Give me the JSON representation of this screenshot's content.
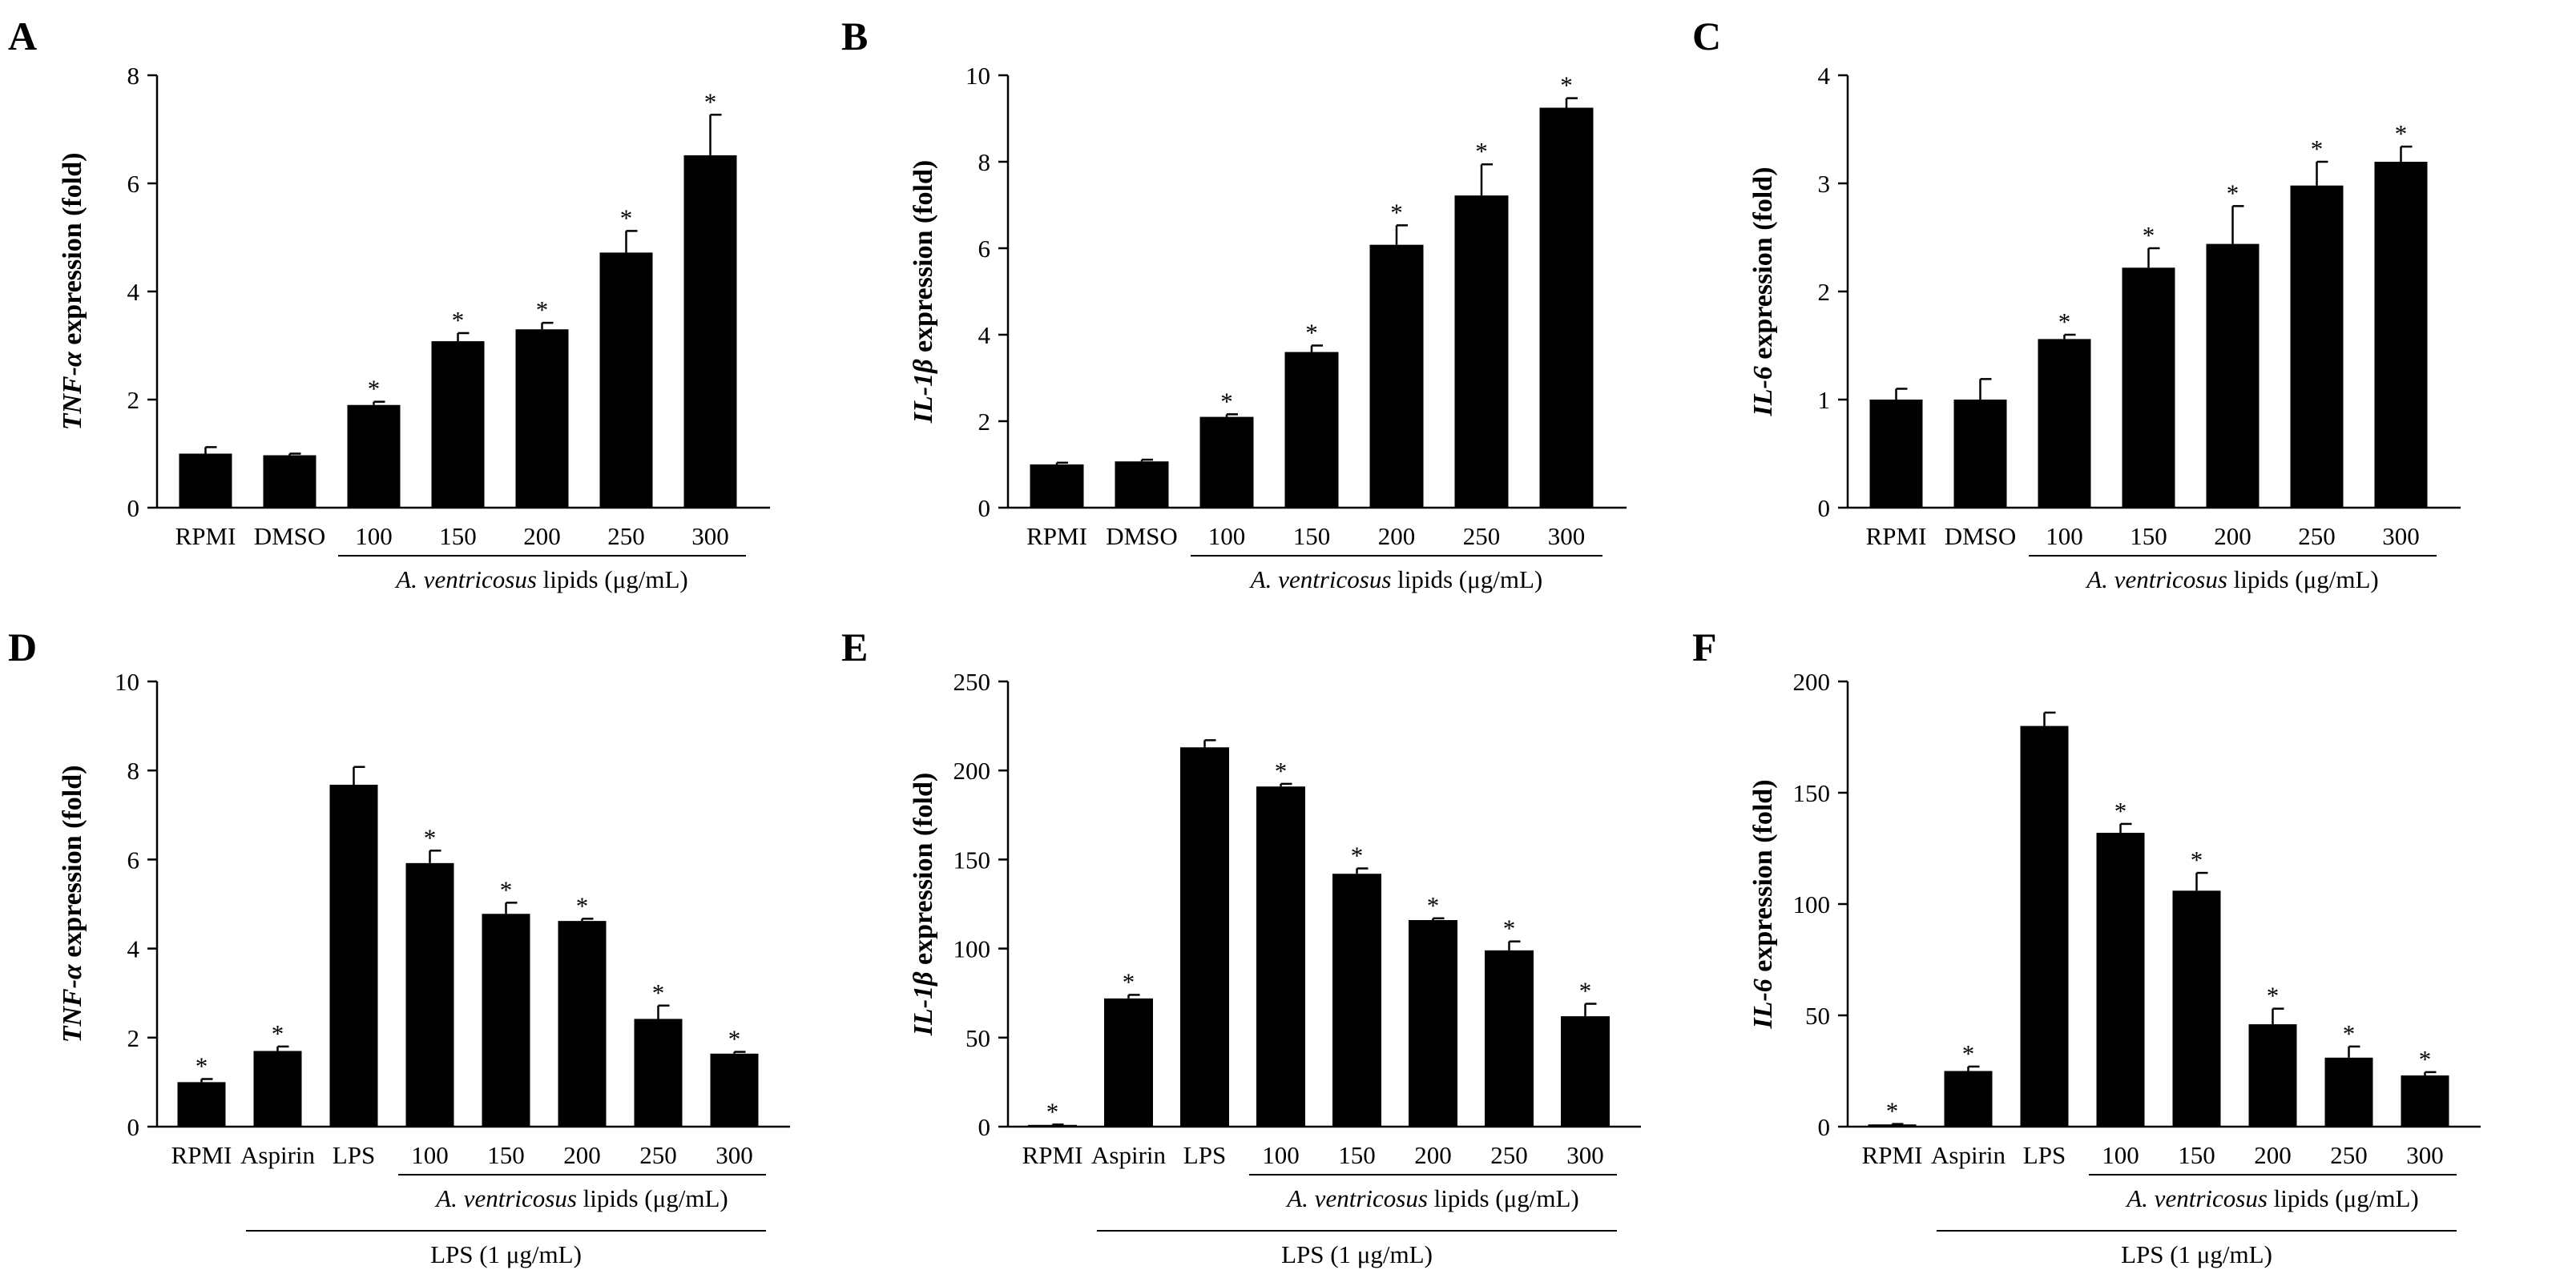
{
  "chart_data": [
    {
      "type": "bar",
      "panel": "A",
      "ylabel_italic": "TNF-α",
      "ylabel_rest": " expression (fold)",
      "ylim": [
        0,
        8
      ],
      "yticks": [
        0,
        2,
        4,
        6,
        8
      ],
      "categories": [
        "RPMI",
        "DMSO",
        "100",
        "150",
        "200",
        "250",
        "300"
      ],
      "values": [
        1.0,
        0.97,
        1.9,
        3.08,
        3.3,
        4.72,
        6.52
      ],
      "errors": [
        0.12,
        0.03,
        0.06,
        0.15,
        0.12,
        0.4,
        0.75
      ],
      "significant": [
        false,
        false,
        true,
        true,
        true,
        true,
        true
      ],
      "star_symbol": "*",
      "groups": [
        {
          "italic": "A. ventricosus",
          "rest": " lipids (μg/mL)",
          "from": 2,
          "to": 6
        }
      ]
    },
    {
      "type": "bar",
      "panel": "B",
      "ylabel_italic": "IL-1β",
      "ylabel_rest": " expression (fold)",
      "ylim": [
        0,
        10
      ],
      "yticks": [
        0,
        2,
        4,
        6,
        8,
        10
      ],
      "categories": [
        "RPMI",
        "DMSO",
        "100",
        "150",
        "200",
        "250",
        "300"
      ],
      "values": [
        1.0,
        1.07,
        2.1,
        3.6,
        6.08,
        7.22,
        9.25
      ],
      "errors": [
        0.04,
        0.04,
        0.06,
        0.15,
        0.45,
        0.72,
        0.22
      ],
      "significant": [
        false,
        false,
        true,
        true,
        true,
        true,
        true
      ],
      "star_symbol": "*",
      "groups": [
        {
          "italic": "A. ventricosus",
          "rest": " lipids (μg/mL)",
          "from": 2,
          "to": 6
        }
      ]
    },
    {
      "type": "bar",
      "panel": "C",
      "ylabel_italic": "IL-6",
      "ylabel_rest": " expression (fold)",
      "ylim": [
        0,
        4
      ],
      "yticks": [
        0,
        1,
        2,
        3,
        4
      ],
      "categories": [
        "RPMI",
        "DMSO",
        "100",
        "150",
        "200",
        "250",
        "300"
      ],
      "values": [
        1.0,
        1.0,
        1.56,
        2.22,
        2.44,
        2.98,
        3.2
      ],
      "errors": [
        0.1,
        0.19,
        0.04,
        0.18,
        0.35,
        0.22,
        0.14
      ],
      "significant": [
        false,
        false,
        true,
        true,
        true,
        true,
        true
      ],
      "star_symbol": "*",
      "groups": [
        {
          "italic": "A. ventricosus",
          "rest": " lipids (μg/mL)",
          "from": 2,
          "to": 6
        }
      ]
    },
    {
      "type": "bar",
      "panel": "D",
      "ylabel_italic": "TNF-α",
      "ylabel_rest": " expression (fold)",
      "ylim": [
        0,
        10
      ],
      "yticks": [
        0,
        2,
        4,
        6,
        8,
        10
      ],
      "categories": [
        "RPMI",
        "Aspirin",
        "LPS",
        "100",
        "150",
        "200",
        "250",
        "300"
      ],
      "values": [
        1.0,
        1.7,
        7.68,
        5.92,
        4.78,
        4.62,
        2.42,
        1.64
      ],
      "errors": [
        0.07,
        0.1,
        0.4,
        0.28,
        0.25,
        0.05,
        0.3,
        0.04
      ],
      "significant": [
        true,
        true,
        false,
        true,
        true,
        true,
        true,
        true
      ],
      "star_symbol": "*",
      "groups": [
        {
          "italic": "A. ventricosus",
          "rest": " lipids (μg/mL)",
          "from": 3,
          "to": 7
        },
        {
          "italic": "",
          "rest": "LPS (1 μg/mL)",
          "from": 1,
          "to": 7
        }
      ]
    },
    {
      "type": "bar",
      "panel": "E",
      "ylabel_italic": "IL-1β",
      "ylabel_rest": " expression (fold)",
      "ylim": [
        0,
        250
      ],
      "yticks": [
        0,
        50,
        100,
        150,
        200,
        250
      ],
      "categories": [
        "RPMI",
        "Aspirin",
        "LPS",
        "100",
        "150",
        "200",
        "250",
        "300"
      ],
      "values": [
        1.0,
        72,
        213,
        191,
        142,
        116,
        99,
        62
      ],
      "errors": [
        0.2,
        2,
        4,
        1.5,
        3,
        1,
        5,
        7
      ],
      "significant": [
        true,
        true,
        false,
        true,
        true,
        true,
        true,
        true
      ],
      "star_symbol": "*",
      "groups": [
        {
          "italic": "A. ventricosus",
          "rest": " lipids (μg/mL)",
          "from": 3,
          "to": 7
        },
        {
          "italic": "",
          "rest": "LPS (1 μg/mL)",
          "from": 1,
          "to": 7
        }
      ]
    },
    {
      "type": "bar",
      "panel": "F",
      "ylabel_italic": "IL-6",
      "ylabel_rest": " expression (fold)",
      "ylim": [
        0,
        200
      ],
      "yticks": [
        0,
        50,
        100,
        150,
        200
      ],
      "categories": [
        "RPMI",
        "Aspirin",
        "LPS",
        "100",
        "150",
        "200",
        "250",
        "300"
      ],
      "values": [
        1.0,
        25,
        180,
        132,
        106,
        46,
        31,
        23
      ],
      "errors": [
        0.2,
        2,
        6,
        4,
        8,
        7,
        5,
        1.5
      ],
      "significant": [
        true,
        true,
        false,
        true,
        true,
        true,
        true,
        true
      ],
      "star_symbol": "*",
      "groups": [
        {
          "italic": "A. ventricosus",
          "rest": " lipids (μg/mL)",
          "from": 3,
          "to": 7
        },
        {
          "italic": "",
          "rest": "LPS (1 μg/mL)",
          "from": 1,
          "to": 7
        }
      ]
    }
  ]
}
